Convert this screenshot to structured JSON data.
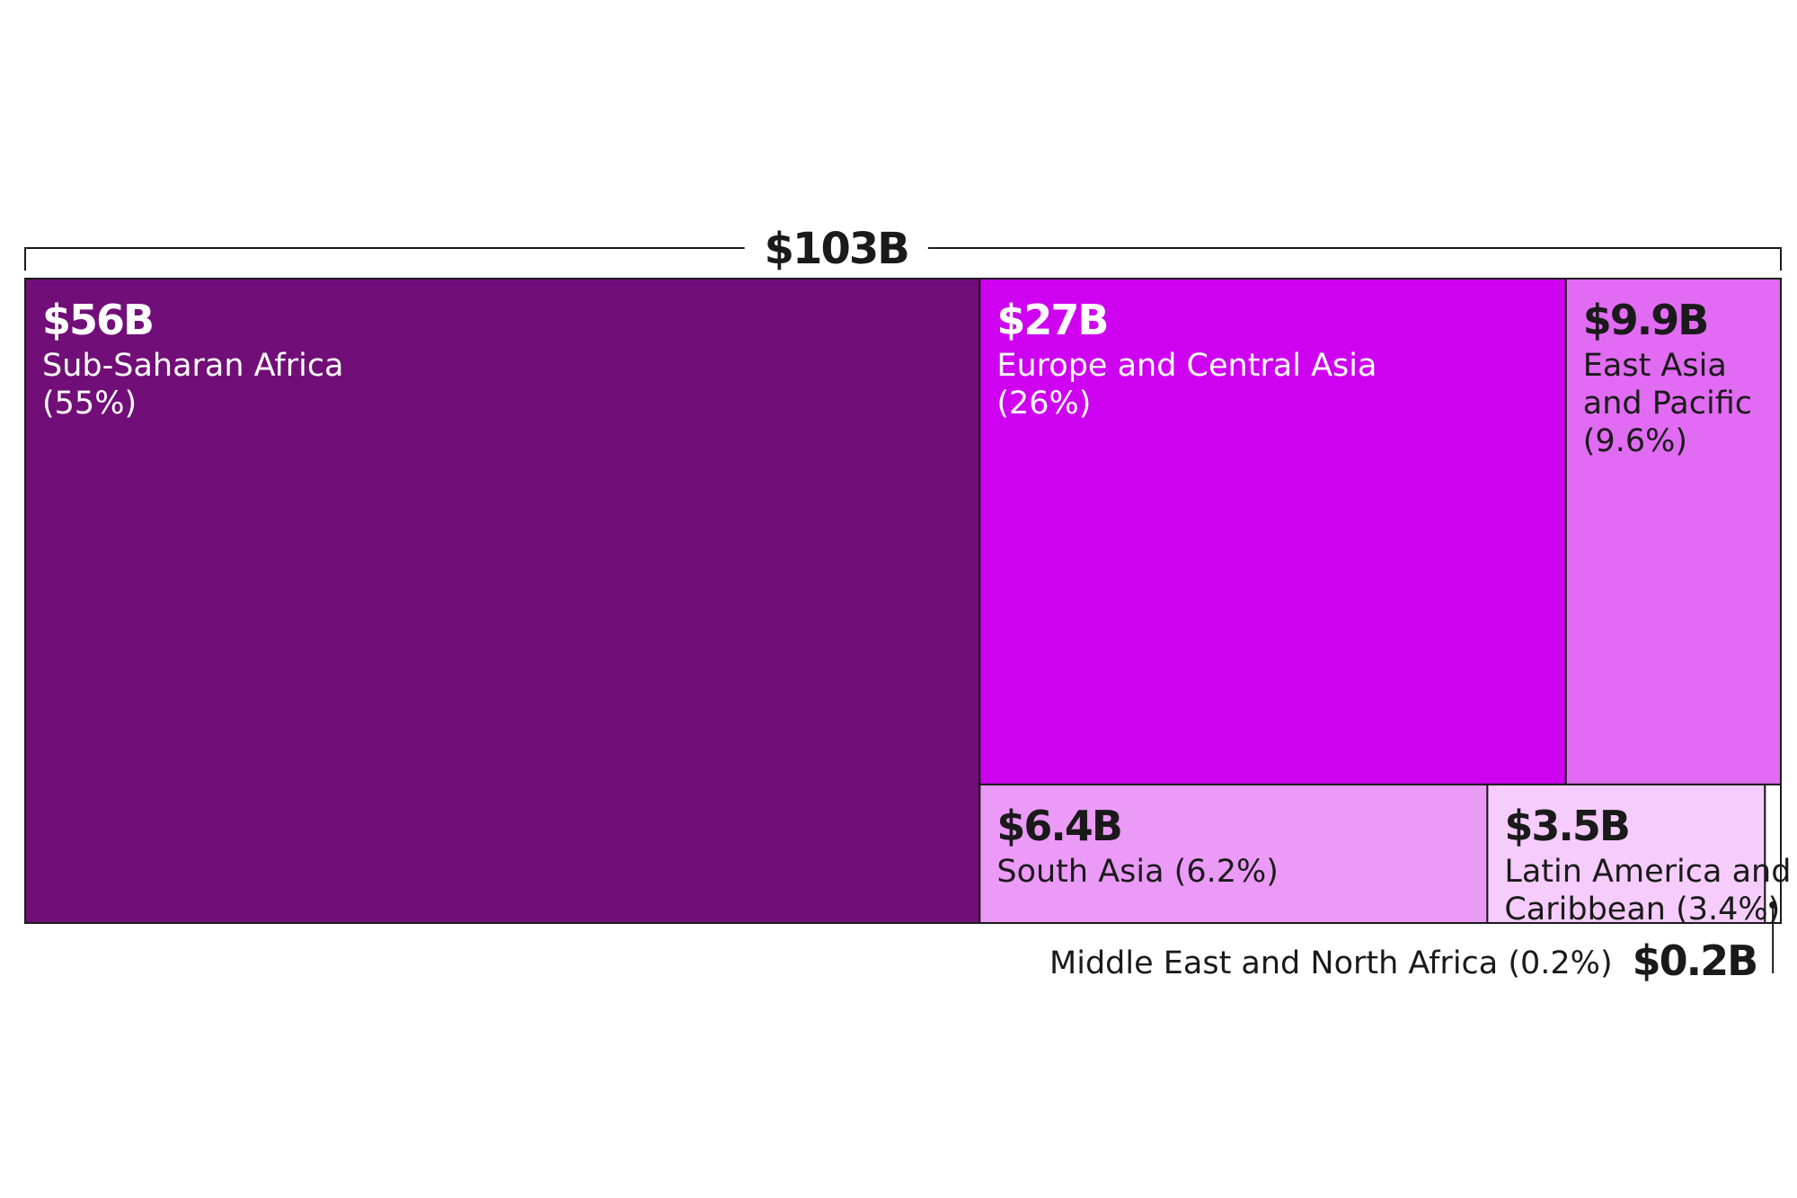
{
  "chart_data": {
    "type": "treemap",
    "total": {
      "value": 103,
      "label": "$103B"
    },
    "items": [
      {
        "name": "Sub-Saharan Africa",
        "value": 56,
        "value_label": "$56B",
        "share_label": "(55%)",
        "label_lines": [
          "Sub-Saharan Africa",
          "(55%)"
        ],
        "color": "#720E78",
        "text_color": "#ffffff"
      },
      {
        "name": "Europe and Central Asia",
        "value": 27,
        "value_label": "$27B",
        "share_label": "(26%)",
        "label_lines": [
          "Europe and Central Asia",
          "(26%)"
        ],
        "color": "#CE02F0",
        "text_color": "#ffffff"
      },
      {
        "name": "East Asia and Pacific",
        "value": 9.9,
        "value_label": "$9.9B",
        "share_label": "(9.6%)",
        "label_lines": [
          "East Asia",
          "and Pacific",
          "(9.6%)"
        ],
        "color": "#E16BF3",
        "text_color": "#1a1a1a"
      },
      {
        "name": "South Asia",
        "value": 6.4,
        "value_label": "$6.4B",
        "share_label": "(6.2%)",
        "label_lines": [
          "South Asia (6.2%)"
        ],
        "color": "#EC9AF7",
        "text_color": "#1a1a1a"
      },
      {
        "name": "Latin America and Caribbean",
        "value": 3.5,
        "value_label": "$3.5B",
        "share_label": "(3.4%)",
        "label_lines": [
          "Latin America and",
          "Caribbean (3.4%)"
        ],
        "color": "#F5CCFB",
        "text_color": "#1a1a1a"
      },
      {
        "name": "Middle East and North Africa",
        "value": 0.2,
        "value_label": "$0.2B",
        "share_label": "(0.2%)",
        "label_lines": [
          "Middle East and North Africa (0.2%)"
        ],
        "color": "#ffffff",
        "text_color": "#1a1a1a"
      }
    ]
  },
  "colors": {
    "border": "#1a1a1a",
    "dark_text": "#1a1a1a"
  }
}
